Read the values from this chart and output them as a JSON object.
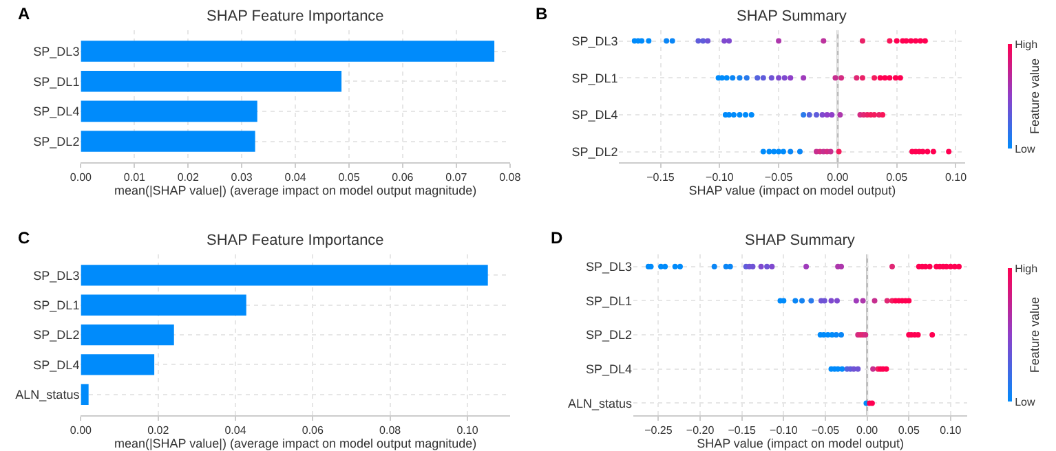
{
  "chart_data": [
    {
      "type": "bar",
      "orientation": "horizontal",
      "title": "SHAP Feature Importance",
      "xlabel": "mean(|SHAP value|) (average impact on model output magnitude)",
      "annotations": [
        "A"
      ],
      "categories": [
        "SP_DL3",
        "SP_DL1",
        "SP_DL4",
        "SP_DL2"
      ],
      "values": [
        0.0771,
        0.0486,
        0.0329,
        0.0325
      ],
      "color": "#008bfb",
      "xlim": [
        0,
        0.08
      ],
      "xticks": [
        {
          "value": 0,
          "label": "0.00"
        },
        {
          "value": 0.01,
          "label": "0.01"
        },
        {
          "value": 0.02,
          "label": "0.02"
        },
        {
          "value": 0.03,
          "label": "0.03"
        },
        {
          "value": 0.04,
          "label": "0.04"
        },
        {
          "value": 0.05,
          "label": "0.05"
        },
        {
          "value": 0.06,
          "label": "0.06"
        },
        {
          "value": 0.07,
          "label": "0.07"
        },
        {
          "value": 0.08,
          "label": "0.08"
        }
      ],
      "grid": true
    },
    {
      "type": "scatter",
      "orientation": "horizontal",
      "title": "SHAP Summary",
      "xlabel": "SHAP value (impact on model output)",
      "clabel": "Feature value",
      "annotations": [
        "B",
        "High",
        "Low"
      ],
      "marker": "circle",
      "categories": [
        "SP_DL3",
        "SP_DL1",
        "SP_DL4",
        "SP_DL2"
      ],
      "series": [
        {
          "x": [
            "SP_DL3",
            "SP_DL3",
            "SP_DL3",
            "SP_DL3",
            "SP_DL3",
            "SP_DL3",
            "SP_DL3",
            "SP_DL3",
            "SP_DL3",
            "SP_DL3",
            "SP_DL3",
            "SP_DL3",
            "SP_DL3",
            "SP_DL3",
            "SP_DL3",
            "SP_DL3",
            "SP_DL3",
            "SP_DL3",
            "SP_DL3",
            "SP_DL3",
            "SP_DL3",
            "SP_DL3"
          ],
          "values": [
            -0.172,
            -0.169,
            -0.166,
            -0.16,
            -0.145,
            -0.14,
            -0.118,
            -0.114,
            -0.11,
            -0.096,
            -0.092,
            -0.05,
            -0.012,
            0.021,
            0.044,
            0.05,
            0.055,
            0.058,
            0.062,
            0.066,
            0.07,
            0.074
          ],
          "colors": [
            "#008bfb",
            "#008bfb",
            "#008bfb",
            "#008bfb",
            "#0a86f6",
            "#0a86f6",
            "#5f5cdb",
            "#5f5cdb",
            "#6f53d5",
            "#7f49cf",
            "#7f49cf",
            "#ad37ac",
            "#bc339e",
            "#ea2167",
            "#f91558",
            "#ff0051",
            "#ff0051",
            "#ff0051",
            "#ff0051",
            "#ff0051",
            "#ff0051",
            "#ff0051"
          ]
        },
        {
          "x": [
            "SP_DL1",
            "SP_DL1",
            "SP_DL1",
            "SP_DL1",
            "SP_DL1",
            "SP_DL1",
            "SP_DL1",
            "SP_DL1",
            "SP_DL1",
            "SP_DL1",
            "SP_DL1",
            "SP_DL1",
            "SP_DL1",
            "SP_DL1",
            "SP_DL1",
            "SP_DL1",
            "SP_DL1",
            "SP_DL1",
            "SP_DL1",
            "SP_DL1",
            "SP_DL1",
            "SP_DL1",
            "SP_DL1"
          ],
          "values": [
            -0.101,
            -0.098,
            -0.094,
            -0.089,
            -0.083,
            -0.077,
            -0.068,
            -0.063,
            -0.056,
            -0.05,
            -0.045,
            -0.04,
            -0.029,
            -0.002,
            0.003,
            0.016,
            0.021,
            0.031,
            0.036,
            0.04,
            0.044,
            0.049,
            0.053
          ],
          "colors": [
            "#008bfb",
            "#008bfb",
            "#008bfb",
            "#0a86f6",
            "#1582f1",
            "#2a7aec",
            "#5563de",
            "#5f5cdb",
            "#6f53d5",
            "#7f49cf",
            "#7f49cf",
            "#8f3fc9",
            "#9f3bbb",
            "#c62f8f",
            "#d42b82",
            "#e02774",
            "#ea2167",
            "#f31c5e",
            "#ff0051",
            "#ff0051",
            "#ff0051",
            "#ff0051",
            "#ff0051"
          ]
        },
        {
          "x": [
            "SP_DL4",
            "SP_DL4",
            "SP_DL4",
            "SP_DL4",
            "SP_DL4",
            "SP_DL4",
            "SP_DL4",
            "SP_DL4",
            "SP_DL4",
            "SP_DL4",
            "SP_DL4",
            "SP_DL4",
            "SP_DL4",
            "SP_DL4",
            "SP_DL4",
            "SP_DL4",
            "SP_DL4",
            "SP_DL4",
            "SP_DL4",
            "SP_DL4"
          ],
          "values": [
            -0.095,
            -0.092,
            -0.088,
            -0.083,
            -0.078,
            -0.073,
            -0.029,
            -0.024,
            -0.018,
            -0.013,
            -0.009,
            -0.005,
            0.002,
            0.019,
            0.022,
            0.025,
            0.028,
            0.031,
            0.035,
            0.038
          ],
          "colors": [
            "#008bfb",
            "#008bfb",
            "#008bfb",
            "#008bfb",
            "#008bfb",
            "#008bfb",
            "#2a7aec",
            "#5563de",
            "#5f5cdb",
            "#7f49cf",
            "#8f3fc9",
            "#8f3fc9",
            "#ad37ac",
            "#d42b82",
            "#e02774",
            "#ea2167",
            "#f31c5e",
            "#f31c5e",
            "#ea2167",
            "#f91558"
          ]
        },
        {
          "x": [
            "SP_DL2",
            "SP_DL2",
            "SP_DL2",
            "SP_DL2",
            "SP_DL2",
            "SP_DL2",
            "SP_DL2",
            "SP_DL2",
            "SP_DL2",
            "SP_DL2",
            "SP_DL2",
            "SP_DL2",
            "SP_DL2",
            "SP_DL2",
            "SP_DL2",
            "SP_DL2",
            "SP_DL2",
            "SP_DL2",
            "SP_DL2",
            "SP_DL2"
          ],
          "values": [
            -0.063,
            -0.058,
            -0.054,
            -0.05,
            -0.046,
            -0.04,
            -0.032,
            -0.018,
            -0.015,
            -0.012,
            -0.009,
            -0.006,
            0.001,
            0.063,
            0.066,
            0.069,
            0.072,
            0.076,
            0.081,
            0.094
          ],
          "colors": [
            "#008bfb",
            "#008bfb",
            "#008bfb",
            "#008bfb",
            "#008bfb",
            "#0a86f6",
            "#0a86f6",
            "#c62f8f",
            "#d42b82",
            "#c62f8f",
            "#d42b82",
            "#c62f8f",
            "#f31c5e",
            "#ff0051",
            "#ff0051",
            "#ff0051",
            "#ff0051",
            "#ff0051",
            "#ff0051",
            "#ff0051"
          ]
        }
      ],
      "xlim": [
        -0.185,
        0.108
      ],
      "xticks": [
        {
          "value": -0.15,
          "label": "−0.15"
        },
        {
          "value": -0.1,
          "label": "−0.10"
        },
        {
          "value": -0.05,
          "label": "−0.05"
        },
        {
          "value": 0,
          "label": "0.00"
        },
        {
          "value": 0.05,
          "label": "0.05"
        },
        {
          "value": 0.1,
          "label": "0.10"
        }
      ],
      "ref_lines": [
        {
          "axis": "x",
          "value": 0,
          "color": "#bbbbbb"
        }
      ],
      "grid": true
    },
    {
      "type": "bar",
      "orientation": "horizontal",
      "title": "SHAP Feature Importance",
      "xlabel": "mean(|SHAP value|) (average impact on model output magnitude)",
      "annotations": [
        "C"
      ],
      "categories": [
        "SP_DL3",
        "SP_DL1",
        "SP_DL2",
        "SP_DL4",
        "ALN_status"
      ],
      "values": [
        0.1053,
        0.0428,
        0.0241,
        0.019,
        0.002
      ],
      "color": "#008bfb",
      "xlim": [
        0,
        0.111
      ],
      "xticks": [
        {
          "value": 0,
          "label": "0.00"
        },
        {
          "value": 0.02,
          "label": "0.02"
        },
        {
          "value": 0.04,
          "label": "0.04"
        },
        {
          "value": 0.06,
          "label": "0.06"
        },
        {
          "value": 0.08,
          "label": "0.08"
        },
        {
          "value": 0.1,
          "label": "0.10"
        }
      ],
      "grid": true
    },
    {
      "type": "scatter",
      "orientation": "horizontal",
      "title": "SHAP Summary",
      "xlabel": "SHAP value (impact on model output)",
      "clabel": "Feature value",
      "annotations": [
        "D",
        "High",
        "Low"
      ],
      "marker": "circle",
      "categories": [
        "SP_DL3",
        "SP_DL1",
        "SP_DL2",
        "SP_DL4",
        "ALN_status"
      ],
      "series": [
        {
          "x": [
            "SP_DL3",
            "SP_DL3",
            "SP_DL3",
            "SP_DL3",
            "SP_DL3",
            "SP_DL3",
            "SP_DL3",
            "SP_DL3",
            "SP_DL3",
            "SP_DL3",
            "SP_DL3",
            "SP_DL3",
            "SP_DL3",
            "SP_DL3",
            "SP_DL3",
            "SP_DL3",
            "SP_DL3",
            "SP_DL3",
            "SP_DL3",
            "SP_DL3",
            "SP_DL3",
            "SP_DL3",
            "SP_DL3",
            "SP_DL3",
            "SP_DL3",
            "SP_DL3",
            "SP_DL3",
            "SP_DL3",
            "SP_DL3",
            "SP_DL3"
          ],
          "values": [
            -0.262,
            -0.259,
            -0.247,
            -0.242,
            -0.23,
            -0.224,
            -0.183,
            -0.169,
            -0.164,
            -0.145,
            -0.141,
            -0.137,
            -0.127,
            -0.12,
            -0.114,
            -0.073,
            -0.035,
            -0.031,
            0.03,
            0.062,
            0.066,
            0.07,
            0.075,
            0.083,
            0.087,
            0.091,
            0.095,
            0.1,
            0.105,
            0.11
          ],
          "colors": [
            "#008bfb",
            "#008bfb",
            "#008bfb",
            "#008bfb",
            "#008bfb",
            "#008bfb",
            "#0a86f6",
            "#0a86f6",
            "#0a86f6",
            "#5f5cdb",
            "#6f53d5",
            "#6f53d5",
            "#7f49cf",
            "#6f53d5",
            "#7f49cf",
            "#9f3bbb",
            "#ad37ac",
            "#ad37ac",
            "#e02774",
            "#ff0051",
            "#ff0051",
            "#ff0051",
            "#ff0051",
            "#ff0051",
            "#ff0051",
            "#ff0051",
            "#ff0051",
            "#ff0051",
            "#ff0051",
            "#ff0051"
          ]
        },
        {
          "x": [
            "SP_DL1",
            "SP_DL1",
            "SP_DL1",
            "SP_DL1",
            "SP_DL1",
            "SP_DL1",
            "SP_DL1",
            "SP_DL1",
            "SP_DL1",
            "SP_DL1",
            "SP_DL1",
            "SP_DL1",
            "SP_DL1",
            "SP_DL1",
            "SP_DL1",
            "SP_DL1",
            "SP_DL1",
            "SP_DL1",
            "SP_DL1"
          ],
          "values": [
            -0.104,
            -0.1,
            -0.086,
            -0.078,
            -0.067,
            -0.055,
            -0.051,
            -0.043,
            -0.036,
            -0.013,
            -0.005,
            0.009,
            0.024,
            0.03,
            0.034,
            0.038,
            0.042,
            0.046,
            0.05
          ],
          "colors": [
            "#008bfb",
            "#008bfb",
            "#0a86f6",
            "#1582f1",
            "#2a7aec",
            "#6f53d5",
            "#6f53d5",
            "#7f49cf",
            "#7f49cf",
            "#9f3bbb",
            "#ad37ac",
            "#c62f8f",
            "#e02774",
            "#f31c5e",
            "#ff0051",
            "#ff0051",
            "#ff0051",
            "#ff0051",
            "#ff0051"
          ]
        },
        {
          "x": [
            "SP_DL2",
            "SP_DL2",
            "SP_DL2",
            "SP_DL2",
            "SP_DL2",
            "SP_DL2",
            "SP_DL2",
            "SP_DL2",
            "SP_DL2",
            "SP_DL2",
            "SP_DL2",
            "SP_DL2",
            "SP_DL2",
            "SP_DL2",
            "SP_DL2"
          ],
          "values": [
            -0.056,
            -0.052,
            -0.047,
            -0.042,
            -0.037,
            -0.031,
            -0.011,
            -0.008,
            -0.005,
            -0.002,
            0.05,
            0.053,
            0.057,
            0.061,
            0.078
          ],
          "colors": [
            "#008bfb",
            "#008bfb",
            "#008bfb",
            "#008bfb",
            "#0a86f6",
            "#0a86f6",
            "#d42b82",
            "#e02774",
            "#e02774",
            "#d42b82",
            "#ff0051",
            "#ff0051",
            "#ff0051",
            "#ff0051",
            "#ff0051"
          ]
        },
        {
          "x": [
            "SP_DL4",
            "SP_DL4",
            "SP_DL4",
            "SP_DL4",
            "SP_DL4",
            "SP_DL4",
            "SP_DL4",
            "SP_DL4",
            "SP_DL4",
            "SP_DL4",
            "SP_DL4",
            "SP_DL4",
            "SP_DL4"
          ],
          "values": [
            -0.043,
            -0.039,
            -0.035,
            -0.03,
            -0.024,
            -0.02,
            -0.016,
            -0.011,
            0.007,
            0.013,
            0.016,
            0.019,
            0.023
          ],
          "colors": [
            "#008bfb",
            "#008bfb",
            "#008bfb",
            "#008bfb",
            "#5563de",
            "#5f5cdb",
            "#6f53d5",
            "#6f53d5",
            "#c62f8f",
            "#f31c5e",
            "#ff0051",
            "#ff0051",
            "#ff0051"
          ]
        },
        {
          "x": [
            "ALN_status",
            "ALN_status",
            "ALN_status"
          ],
          "values": [
            -0.001,
            0.003,
            0.006
          ],
          "colors": [
            "#008bfb",
            "#ff0051",
            "#ff0051"
          ]
        }
      ],
      "xlim": [
        -0.28,
        0.12
      ],
      "xticks": [
        {
          "value": -0.25,
          "label": "−0.25"
        },
        {
          "value": -0.2,
          "label": "−0.20"
        },
        {
          "value": -0.15,
          "label": "−0.15"
        },
        {
          "value": -0.1,
          "label": "−0.10"
        },
        {
          "value": -0.05,
          "label": "−0.05"
        },
        {
          "value": 0,
          "label": "0.00"
        },
        {
          "value": 0.05,
          "label": "0.05"
        },
        {
          "value": 0.1,
          "label": "0.10"
        }
      ],
      "ref_lines": [
        {
          "axis": "x",
          "value": 0,
          "color": "#bbbbbb"
        }
      ],
      "grid": true
    }
  ]
}
